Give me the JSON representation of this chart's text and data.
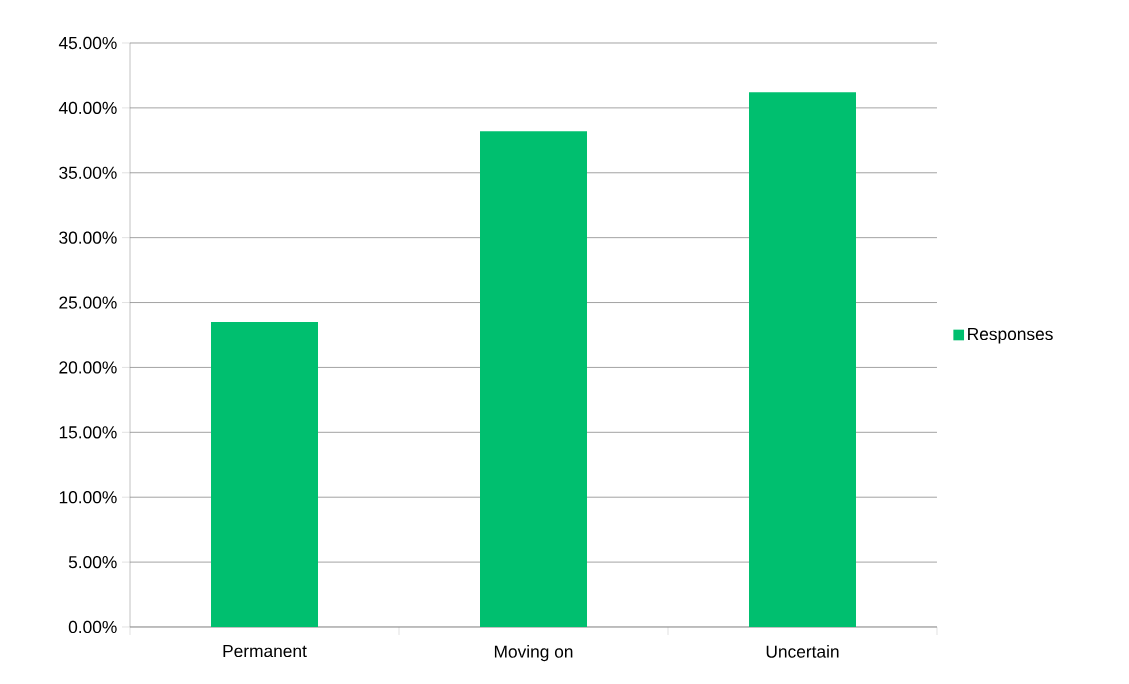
{
  "chart_data": {
    "type": "bar",
    "categories": [
      "Permanent",
      "Moving on",
      "Uncertain"
    ],
    "series": [
      {
        "name": "Responses",
        "color": "#00bf6f",
        "values": [
          23.5,
          38.2,
          41.2
        ]
      }
    ],
    "ylim": [
      0,
      45
    ],
    "yticks": [
      {
        "value": 0,
        "label": "0.00%"
      },
      {
        "value": 5,
        "label": "5.00%"
      },
      {
        "value": 10,
        "label": "10.00%"
      },
      {
        "value": 15,
        "label": "15.00%"
      },
      {
        "value": 20,
        "label": "20.00%"
      },
      {
        "value": 25,
        "label": "25.00%"
      },
      {
        "value": 30,
        "label": "30.00%"
      },
      {
        "value": 35,
        "label": "35.00%"
      },
      {
        "value": 40,
        "label": "40.00%"
      },
      {
        "value": 45,
        "label": "45.00%"
      }
    ],
    "grid": "y",
    "legend": "right"
  }
}
